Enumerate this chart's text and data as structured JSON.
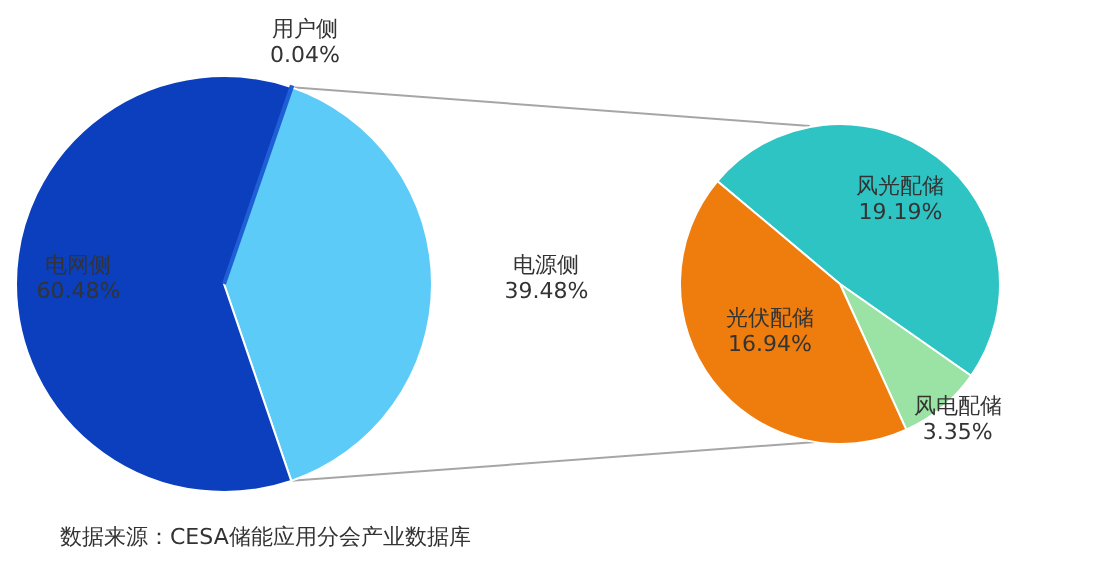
{
  "chart_data": [
    {
      "type": "pie",
      "categories": [
        "用户侧",
        "电源侧",
        "电网侧"
      ],
      "values": [
        0.04,
        39.48,
        60.48
      ],
      "value_labels": [
        "0.04%",
        "39.48%",
        "60.48%"
      ],
      "colors": [
        "#1f5fd6",
        "#5ccbf7",
        "#0b3fbd"
      ],
      "legend": false,
      "annotations": [
        "数据来源：CESA储能应用分会产业数据库"
      ]
    },
    {
      "type": "pie",
      "categories": [
        "风光配储",
        "风电配储",
        "光伏配储"
      ],
      "values": [
        19.19,
        3.35,
        16.94
      ],
      "value_labels": [
        "19.19%",
        "3.35%",
        "16.94%"
      ],
      "colors": [
        "#2ec4c4",
        "#9be3a4",
        "#ef7d0d"
      ],
      "legend": false
    }
  ]
}
